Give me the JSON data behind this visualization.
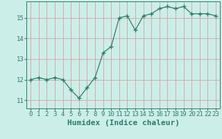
{
  "x": [
    0,
    1,
    2,
    3,
    4,
    5,
    6,
    7,
    8,
    9,
    10,
    11,
    12,
    13,
    14,
    15,
    16,
    17,
    18,
    19,
    20,
    21,
    22,
    23
  ],
  "y": [
    12.0,
    12.1,
    12.0,
    12.1,
    12.0,
    11.5,
    11.1,
    11.6,
    12.1,
    13.3,
    13.6,
    15.0,
    15.1,
    14.4,
    15.1,
    15.2,
    15.45,
    15.55,
    15.45,
    15.55,
    15.2,
    15.2,
    15.2,
    15.1
  ],
  "line_color": "#2d7a68",
  "marker": "+",
  "marker_size": 4,
  "bg_color": "#cceee8",
  "grid_color": "#d4a0a0",
  "xlabel": "Humidex (Indice chaleur)",
  "xlabel_fontsize": 8,
  "ylabel_ticks": [
    11,
    12,
    13,
    14,
    15
  ],
  "xticks": [
    0,
    1,
    2,
    3,
    4,
    5,
    6,
    7,
    8,
    9,
    10,
    11,
    12,
    13,
    14,
    15,
    16,
    17,
    18,
    19,
    20,
    21,
    22,
    23
  ],
  "xlim": [
    -0.5,
    23.5
  ],
  "ylim": [
    10.6,
    15.8
  ],
  "tick_color": "#2d7a68",
  "tick_fontsize": 6.5,
  "linewidth": 0.9
}
